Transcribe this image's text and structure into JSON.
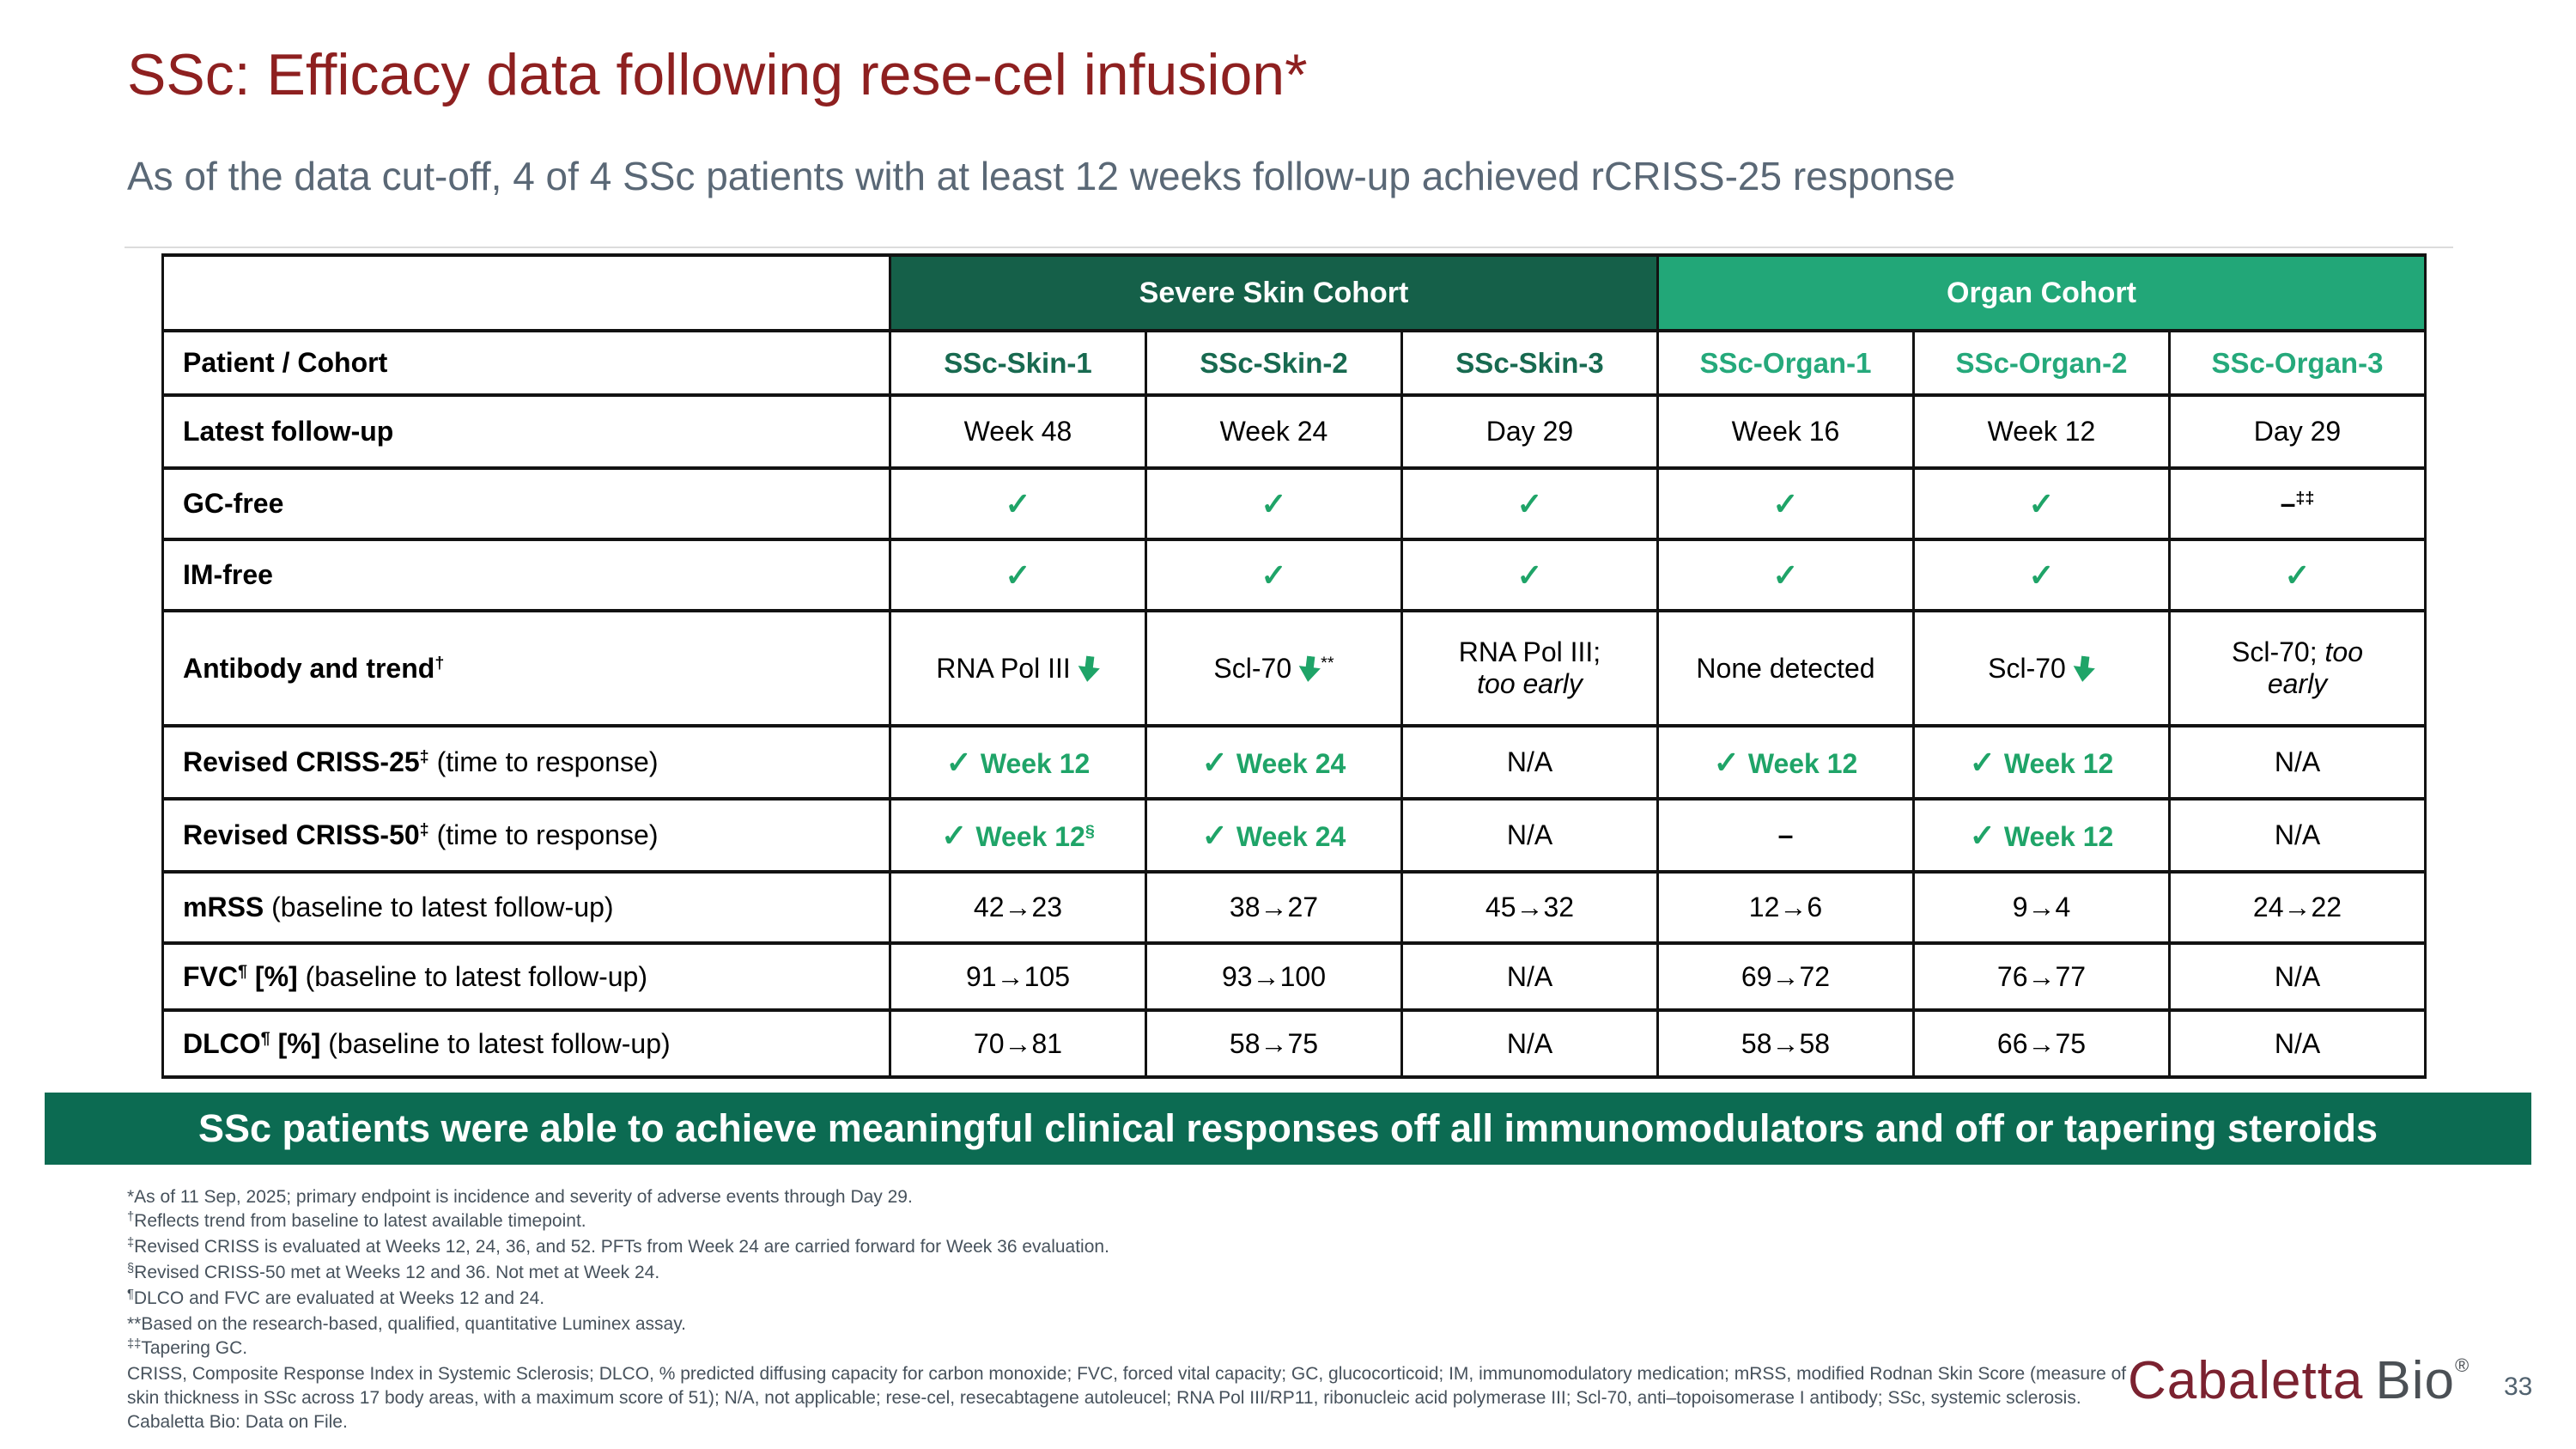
{
  "slide": {
    "title": "SSc: Efficacy data following rese-cel infusion*",
    "subtitle": "As of the data cut-off, 4 of 4 SSc patients with at least 12 weeks follow-up achieved rCRISS-25 response",
    "banner": "SSc patients were able to achieve meaningful clinical responses off all immunomodulators and off or tapering steroids",
    "page_number": "33"
  },
  "logo": {
    "text1": "Cabaletta",
    "text2": "Bio",
    "reg": "®"
  },
  "glyphs": {
    "check": "✓",
    "arrow_semantic": "trend-down-arrow"
  },
  "colors": {
    "dark_green": "#156049",
    "light_green": "#22A778",
    "banner_green": "#0C6B52",
    "accent_green": "#1FA468",
    "skin_col_green": "#186A50",
    "organ_col_green": "#25A97B",
    "gray_cell": "#D9D9D9",
    "title_maroon": "#8E2020",
    "slate": "#5A6876",
    "footnote_gray": "#47525C",
    "logo_maroon": "#7B2230",
    "logo_gray": "#4B5055",
    "border": "#121212"
  },
  "table": {
    "cohorts": [
      {
        "label": "Severe Skin Cohort",
        "tone": "dark",
        "span": 3
      },
      {
        "label": "Organ Cohort",
        "tone": "light",
        "span": 3
      }
    ],
    "rows": [
      {
        "name": "patient-cohort",
        "h": 75,
        "label": {
          "bold": "Patient / Cohort"
        },
        "cells": [
          {
            "t": "colhead",
            "v": "SSc-Skin-1",
            "g": "dark"
          },
          {
            "t": "colhead",
            "v": "SSc-Skin-2",
            "g": "dark"
          },
          {
            "t": "colhead",
            "v": "SSc-Skin-3",
            "g": "dark"
          },
          {
            "t": "colhead",
            "v": "SSc-Organ-1",
            "g": "light"
          },
          {
            "t": "colhead",
            "v": "SSc-Organ-2",
            "g": "light"
          },
          {
            "t": "colhead",
            "v": "SSc-Organ-3",
            "g": "light"
          }
        ]
      },
      {
        "name": "latest-follow-up",
        "h": 85,
        "label": {
          "bold": "Latest follow-up"
        },
        "cells": [
          {
            "t": "plain",
            "v": "Week 48"
          },
          {
            "t": "plain",
            "v": "Week 24"
          },
          {
            "t": "plain",
            "v": "Day 29"
          },
          {
            "t": "plain",
            "v": "Week 16"
          },
          {
            "t": "plain",
            "v": "Week 12"
          },
          {
            "t": "plain",
            "v": "Day 29"
          }
        ]
      },
      {
        "name": "gc-free",
        "h": 83,
        "label": {
          "bold": "GC-free"
        },
        "cells": [
          {
            "t": "check"
          },
          {
            "t": "check"
          },
          {
            "t": "check"
          },
          {
            "t": "check"
          },
          {
            "t": "check"
          },
          {
            "t": "dash",
            "v": "–",
            "sup": "‡‡"
          }
        ]
      },
      {
        "name": "im-free",
        "h": 83,
        "label": {
          "bold": "IM-free"
        },
        "cells": [
          {
            "t": "check"
          },
          {
            "t": "check"
          },
          {
            "t": "check"
          },
          {
            "t": "check"
          },
          {
            "t": "check"
          },
          {
            "t": "check"
          }
        ]
      },
      {
        "name": "antibody-trend",
        "h": 134,
        "label": {
          "bold": "Antibody and trend",
          "sup": "†"
        },
        "cells": [
          {
            "t": "plain",
            "v": "RNA Pol III",
            "arrow": true
          },
          {
            "t": "plain",
            "v": "Scl-70",
            "arrow": true,
            "sup": "**"
          },
          {
            "t": "lines",
            "gray": true,
            "lines": [
              [
                {
                  "x": "RNA Pol III;"
                }
              ],
              [
                {
                  "x": "too early",
                  "i": true
                }
              ]
            ]
          },
          {
            "t": "plain",
            "v": "None detected"
          },
          {
            "t": "plain",
            "v": "Scl-70",
            "arrow": true
          },
          {
            "t": "lines",
            "gray": true,
            "lines": [
              [
                {
                  "x": "Scl-70; "
                },
                {
                  "x": "too",
                  "i": true
                }
              ],
              [
                {
                  "x": "early",
                  "i": true
                }
              ]
            ]
          }
        ]
      },
      {
        "name": "revised-criss-25",
        "h": 85,
        "label": {
          "bold": "Revised CRISS-25",
          "sup": "‡",
          "normal": " (time to response)"
        },
        "cells": [
          {
            "t": "checkword",
            "v": "Week 12"
          },
          {
            "t": "checkword",
            "v": "Week 24"
          },
          {
            "t": "na",
            "v": "N/A"
          },
          {
            "t": "checkword",
            "v": "Week 12"
          },
          {
            "t": "checkword",
            "v": "Week 12"
          },
          {
            "t": "na",
            "v": "N/A"
          }
        ]
      },
      {
        "name": "revised-criss-50",
        "h": 85,
        "label": {
          "bold": "Revised CRISS-50",
          "sup": "‡",
          "normal": " (time to response)"
        },
        "cells": [
          {
            "t": "checkword",
            "v": "Week 12",
            "sup": "§"
          },
          {
            "t": "checkword",
            "v": "Week 24"
          },
          {
            "t": "na",
            "v": "N/A"
          },
          {
            "t": "dash",
            "v": "–"
          },
          {
            "t": "checkword",
            "v": "Week 12"
          },
          {
            "t": "na",
            "v": "N/A"
          }
        ]
      },
      {
        "name": "mrss",
        "h": 83,
        "label": {
          "bold": "mRSS",
          "normal": " (baseline to latest follow-up)"
        },
        "cells": [
          {
            "t": "plain",
            "v": "42→23"
          },
          {
            "t": "plain",
            "v": "38→27"
          },
          {
            "t": "plain",
            "v": "45→32"
          },
          {
            "t": "plain",
            "v": "12→6"
          },
          {
            "t": "plain",
            "v": "9→4"
          },
          {
            "t": "plain",
            "v": "24→22"
          }
        ]
      },
      {
        "name": "fvc",
        "h": 78,
        "label": {
          "bold": "FVC",
          "sup": "¶",
          "bold2": " [%]",
          "normal": " (baseline to latest follow-up)"
        },
        "cells": [
          {
            "t": "plain",
            "v": "91→105"
          },
          {
            "t": "plain",
            "v": "93→100"
          },
          {
            "t": "na",
            "v": "N/A"
          },
          {
            "t": "plain",
            "v": "69→72"
          },
          {
            "t": "plain",
            "v": "76→77"
          },
          {
            "t": "na",
            "v": "N/A"
          }
        ]
      },
      {
        "name": "dlco",
        "h": 78,
        "label": {
          "bold": "DLCO",
          "sup": "¶",
          "bold2": " [%]",
          "normal": " (baseline to latest follow-up)"
        },
        "cells": [
          {
            "t": "plain",
            "v": "70→81"
          },
          {
            "t": "plain",
            "v": "58→75"
          },
          {
            "t": "na",
            "v": "N/A"
          },
          {
            "t": "plain",
            "v": "58→58"
          },
          {
            "t": "plain",
            "v": "66→75"
          },
          {
            "t": "na",
            "v": "N/A"
          }
        ]
      }
    ]
  },
  "footnotes": [
    {
      "text": "*As of 11 Sep, 2025; primary endpoint is incidence and severity of adverse events through Day 29."
    },
    {
      "sup": "†",
      "text": "Reflects trend from baseline to latest available timepoint."
    },
    {
      "sup": "‡",
      "text": "Revised CRISS is evaluated at Weeks 12, 24, 36, and 52. PFTs from Week 24 are carried forward for Week 36 evaluation."
    },
    {
      "sup": "§",
      "text": "Revised CRISS-50 met at Weeks 12 and 36. Not met at Week 24."
    },
    {
      "sup": "¶",
      "text": "DLCO and FVC are evaluated at Weeks 12 and 24."
    },
    {
      "text": "**Based on the research-based, qualified, quantitative Luminex assay."
    },
    {
      "sup": "‡‡",
      "text": "Tapering GC."
    },
    {
      "text": "CRISS, Composite Response Index in Systemic Sclerosis; DLCO, % predicted diffusing capacity for carbon monoxide; FVC, forced vital capacity; GC, glucocorticoid; IM, immunomodulatory medication; mRSS, modified Rodnan Skin Score (measure of skin thickness in SSc across 17 body areas, with a maximum score of 51); N/A, not applicable; rese-cel, resecabtagene autoleucel; RNA Pol III/RP11, ribonucleic acid polymerase III; Scl-70, anti–topoisomerase I antibody; SSc, systemic sclerosis."
    },
    {
      "text": "Cabaletta Bio: Data on File."
    }
  ]
}
